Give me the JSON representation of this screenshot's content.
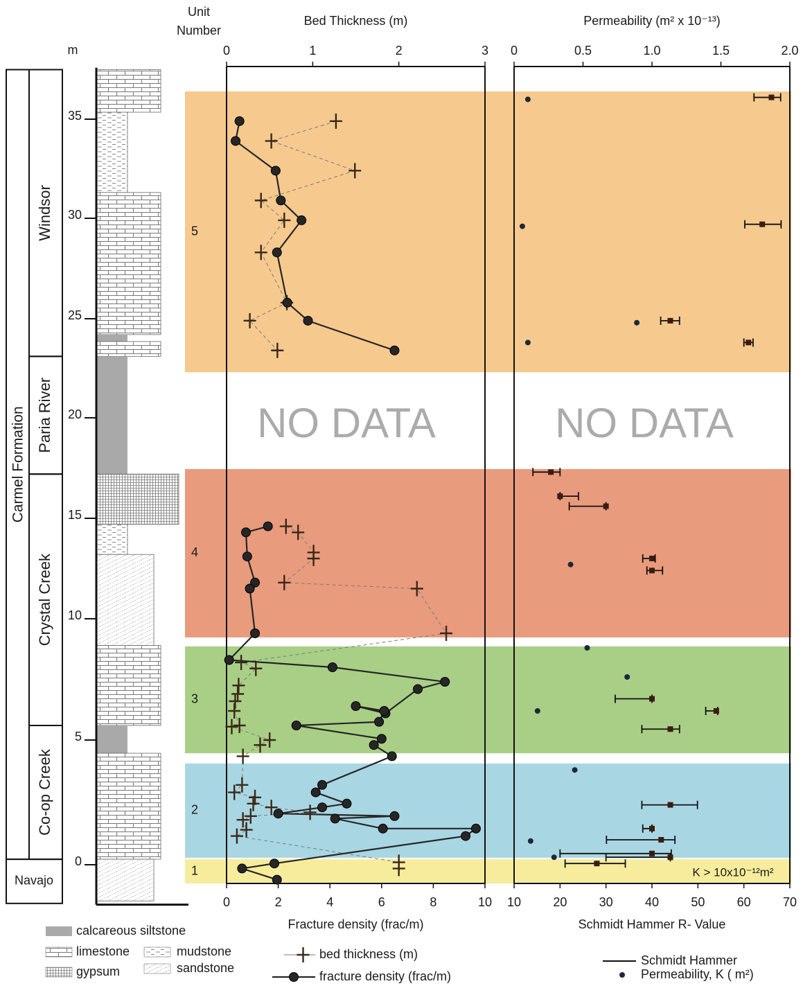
{
  "column": {
    "depth_label": "m",
    "ylim": [
      -1.6,
      37.6
    ],
    "yticks": [
      0,
      5,
      10,
      15,
      20,
      25,
      30,
      35
    ],
    "formations": [
      {
        "name": "Carmel Formation",
        "top": 37.5,
        "base": 0.22,
        "members": [
          {
            "name": "Windsor",
            "top": 37.5,
            "base": 23.1
          },
          {
            "name": "Paria River",
            "top": 23.1,
            "base": 17.2
          },
          {
            "name": "Crystal Creek",
            "top": 17.2,
            "base": 5.6
          },
          {
            "name": "Co-op Creek",
            "top": 5.6,
            "base": 0.22
          }
        ]
      },
      {
        "name": "Navajo",
        "top": 0.22,
        "base": -1.55,
        "members": []
      }
    ],
    "beds": [
      {
        "lithology": "limestone",
        "top": 37.5,
        "base": 35.35
      },
      {
        "lithology": "mudstone",
        "top": 35.35,
        "base": 31.3
      },
      {
        "lithology": "limestone",
        "top": 31.3,
        "base": 24.2
      },
      {
        "lithology": "calcareous siltstone",
        "top": 24.2,
        "base": 23.85
      },
      {
        "lithology": "limestone",
        "top": 23.85,
        "base": 23.1
      },
      {
        "lithology": "calcareous siltstone",
        "top": 23.1,
        "base": 17.2
      },
      {
        "lithology": "gypsum",
        "top": 17.2,
        "base": 14.7
      },
      {
        "lithology": "mudstone",
        "top": 14.7,
        "base": 13.2
      },
      {
        "lithology": "sandstone",
        "top": 13.2,
        "base": 8.9
      },
      {
        "lithology": "limestone",
        "top": 8.9,
        "base": 5.6
      },
      {
        "lithology": "calcareous siltstone",
        "top": 5.6,
        "base": 4.47
      },
      {
        "lithology": "limestone",
        "top": 4.47,
        "base": 0.22
      },
      {
        "lithology": "sandstone",
        "top": 0.22,
        "base": -1.45
      }
    ]
  },
  "units": {
    "title": [
      "Unit",
      "Number"
    ],
    "items": [
      {
        "label": "5",
        "top": 36.4,
        "base": 22.3,
        "color": "#f6c98e"
      },
      {
        "label": "4",
        "top": 17.45,
        "base": 9.23,
        "color": "#e99b7d"
      },
      {
        "label": "3",
        "top": 8.86,
        "base": 4.47,
        "color": "#a9cf86"
      },
      {
        "label": "2",
        "top": 4.06,
        "base": 0.28,
        "color": "#a9d6e3"
      },
      {
        "label": "1",
        "top": 0.22,
        "base": -0.75,
        "color": "#f6ec9c"
      }
    ]
  },
  "annotations": {
    "no_data": [
      "NO DATA",
      "NO DATA"
    ]
  },
  "legend": {
    "lithology": [
      "calcareous siltstone",
      "limestone",
      "mudstone",
      "gypsum",
      "sandstone"
    ]
  },
  "chart_data": [
    {
      "type": "line",
      "xlabel": "Fracture density (frac/m)",
      "xlim": [
        0,
        10
      ],
      "xticks": [
        0,
        2,
        4,
        6,
        8,
        10
      ],
      "x2label": "Bed Thickness (m)",
      "x2lim": [
        0,
        3
      ],
      "x2ticks": [
        0,
        1,
        2,
        3
      ],
      "series": [
        {
          "name": "bed thickness (m)",
          "axis": "x2",
          "marker": "cross",
          "linestyle": "dashed",
          "color": "#3a2818",
          "values": [
            1.27,
            0.52,
            1.49,
            0.4,
            0.67,
            0.4,
            0.7,
            0.27,
            0.59,
            null,
            0.69,
            0.83,
            1.01,
            1.01,
            0.67,
            2.21,
            2.55,
            0.17,
            0.34,
            0.14,
            0.13,
            0.1,
            0.09,
            0.15,
            0.06,
            0.5,
            0.39,
            0.19,
            0.18,
            0.09,
            0.33,
            0.31,
            0.52,
            0.97,
            0.28,
            0.19,
            0.23,
            0.12,
            2.0,
            2.0
          ],
          "depth": [
            34.9,
            33.9,
            32.4,
            30.9,
            29.9,
            28.3,
            25.8,
            24.9,
            23.4,
            null,
            14.6,
            14.3,
            13.3,
            13.0,
            11.8,
            11.5,
            9.4,
            8.2,
            7.95,
            7.25,
            6.9,
            6.6,
            6.2,
            5.6,
            5.55,
            5.0,
            4.8,
            4.35,
            3.2,
            2.9,
            2.7,
            2.45,
            2.3,
            2.1,
            1.95,
            1.8,
            1.4,
            1.15,
            0.1,
            -0.15
          ]
        },
        {
          "name": "fracture density (frac/m)",
          "marker": "circle",
          "linestyle": "solid",
          "color": "#262626",
          "values": [
            0.5,
            0.35,
            1.9,
            2.1,
            2.9,
            1.95,
            2.35,
            3.15,
            6.5,
            null,
            1.6,
            0.75,
            0.8,
            1.1,
            0.9,
            1.1,
            0.1,
            4.1,
            8.45,
            7.4,
            6.15,
            5.0,
            6.1,
            5.9,
            2.7,
            6.0,
            5.7,
            6.4,
            3.7,
            3.45,
            4.65,
            3.7,
            2.0,
            6.5,
            4.2,
            6.05,
            9.65,
            9.25,
            1.85,
            0.6,
            1.95
          ],
          "depth": [
            34.9,
            33.9,
            32.4,
            30.9,
            29.9,
            28.3,
            25.8,
            24.9,
            23.4,
            null,
            14.6,
            14.3,
            13.1,
            11.8,
            11.5,
            9.4,
            8.3,
            8.0,
            7.4,
            7.1,
            6.1,
            6.4,
            6.2,
            5.75,
            5.6,
            5.05,
            4.8,
            4.35,
            3.2,
            2.9,
            2.45,
            2.3,
            2.05,
            1.95,
            1.85,
            1.45,
            1.45,
            1.15,
            0.05,
            -0.15,
            -0.6
          ]
        }
      ]
    },
    {
      "type": "scatter",
      "xlabel": "Schmidt Hammer R- Value",
      "xlim": [
        10,
        70
      ],
      "xticks": [
        10,
        20,
        30,
        40,
        50,
        60,
        70
      ],
      "x2label": "Permeability (m² x 10⁻¹³)",
      "x2lim": [
        0,
        2
      ],
      "x2ticks": [
        0,
        0.5,
        {
          "value": 1,
          "label": "1.0"
        },
        1.5,
        {
          "value": 2,
          "label": "2.0"
        }
      ],
      "annotation": "K > 10x10⁻¹²m²",
      "series": [
        {
          "name": "Schmidt Hammer",
          "marker": "square",
          "color": "#3a1c12",
          "values": [
            66,
            64,
            44,
            61,
            18,
            20,
            30,
            40,
            40,
            40,
            54,
            44,
            44,
            40,
            42,
            40,
            44,
            28
          ],
          "err": [
            [
              3.8,
              2.0
            ],
            [
              3.8,
              4.1
            ],
            [
              2.1,
              2.0
            ],
            [
              1.0,
              1.0
            ],
            [
              3.9,
              2.0
            ],
            [
              0,
              4.0
            ],
            [
              8.0,
              0
            ],
            [
              2.0,
              0.7
            ],
            [
              1.1,
              2.3
            ],
            [
              8.0,
              0
            ],
            [
              2.3,
              0.3
            ],
            [
              6.2,
              2.0
            ],
            [
              6.2,
              5.9
            ],
            [
              2.0,
              0
            ],
            [
              11.9,
              3.0
            ],
            [
              20.0,
              4.2
            ],
            [
              14.0,
              0
            ],
            [
              6.9,
              6.2
            ]
          ],
          "depth": [
            36.1,
            29.7,
            24.9,
            23.8,
            17.3,
            16.1,
            15.6,
            13.0,
            12.4,
            6.7,
            6.2,
            5.45,
            2.4,
            1.45,
            1.0,
            0.45,
            0.3,
            0.05
          ]
        },
        {
          "name": "Permeability, K ( m²)",
          "axis": "x2",
          "marker": "dot",
          "color": "#1b2a38",
          "values": [
            0.1,
            0.06,
            0.89,
            0.1,
            0.41,
            0.53,
            0.82,
            0.17,
            0.44,
            0.12,
            0.29
          ],
          "depth": [
            36.0,
            29.6,
            24.8,
            23.8,
            12.7,
            8.8,
            7.6,
            6.2,
            3.8,
            0.95,
            0.3
          ]
        }
      ]
    }
  ]
}
